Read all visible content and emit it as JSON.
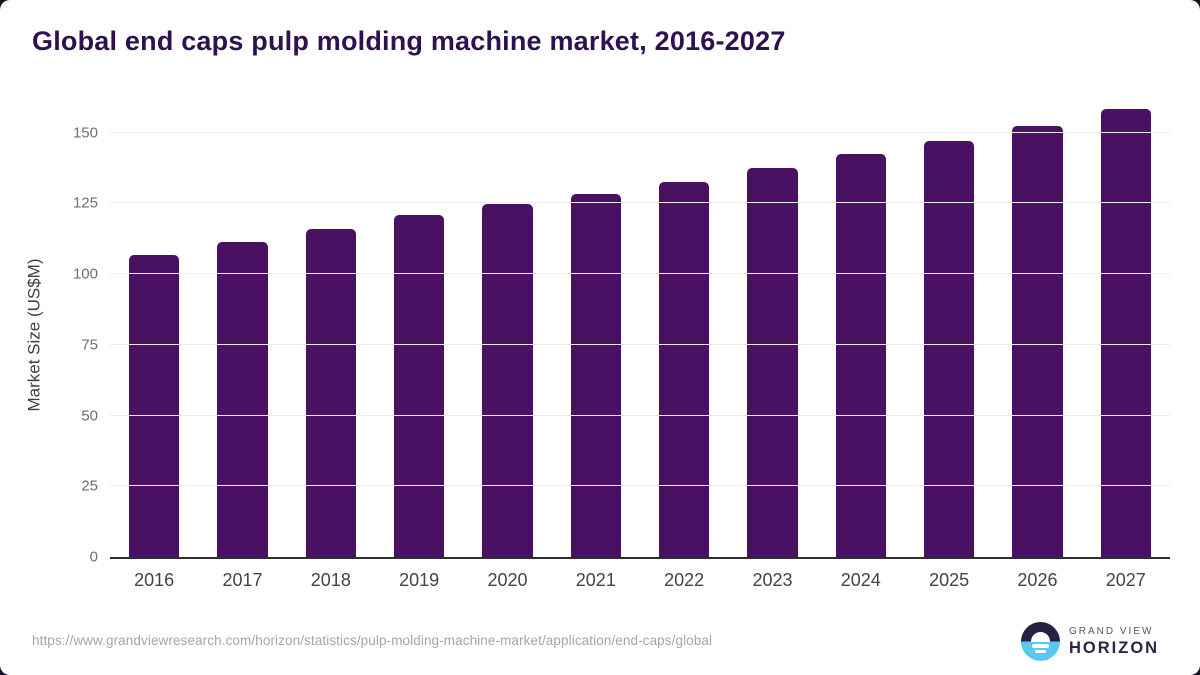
{
  "title": "Global end caps pulp molding machine market, 2016-2027",
  "chart_data": {
    "type": "bar",
    "title": "Global end caps pulp molding machine market, 2016-2027",
    "categories": [
      "2016",
      "2017",
      "2018",
      "2019",
      "2020",
      "2021",
      "2022",
      "2023",
      "2024",
      "2025",
      "2026",
      "2027"
    ],
    "values": [
      106.9,
      111.3,
      115.9,
      120.8,
      124.8,
      128.5,
      132.7,
      137.4,
      142.3,
      147.2,
      152.5,
      158.4
    ],
    "xlabel": "",
    "ylabel": "Market Size (US$M)",
    "yticks": [
      0,
      25,
      50,
      75,
      100,
      125,
      150
    ],
    "ylim": [
      0,
      160
    ],
    "grid": true,
    "legend": false,
    "bar_color": "#4a1163"
  },
  "colors": {
    "title_text": "#2f1150",
    "bar": "#4a1163",
    "axis_line": "#2e2e2e",
    "gridline": "#ececec",
    "logo_dark": "#262041",
    "logo_blue": "#5ac8f2"
  },
  "footer": {
    "source_url": "https://www.grandviewresearch.com/horizon/statistics/pulp-molding-machine-market/application/end-caps/global",
    "logo": {
      "line1": "GRAND VIEW",
      "line2": "HORIZON"
    }
  }
}
